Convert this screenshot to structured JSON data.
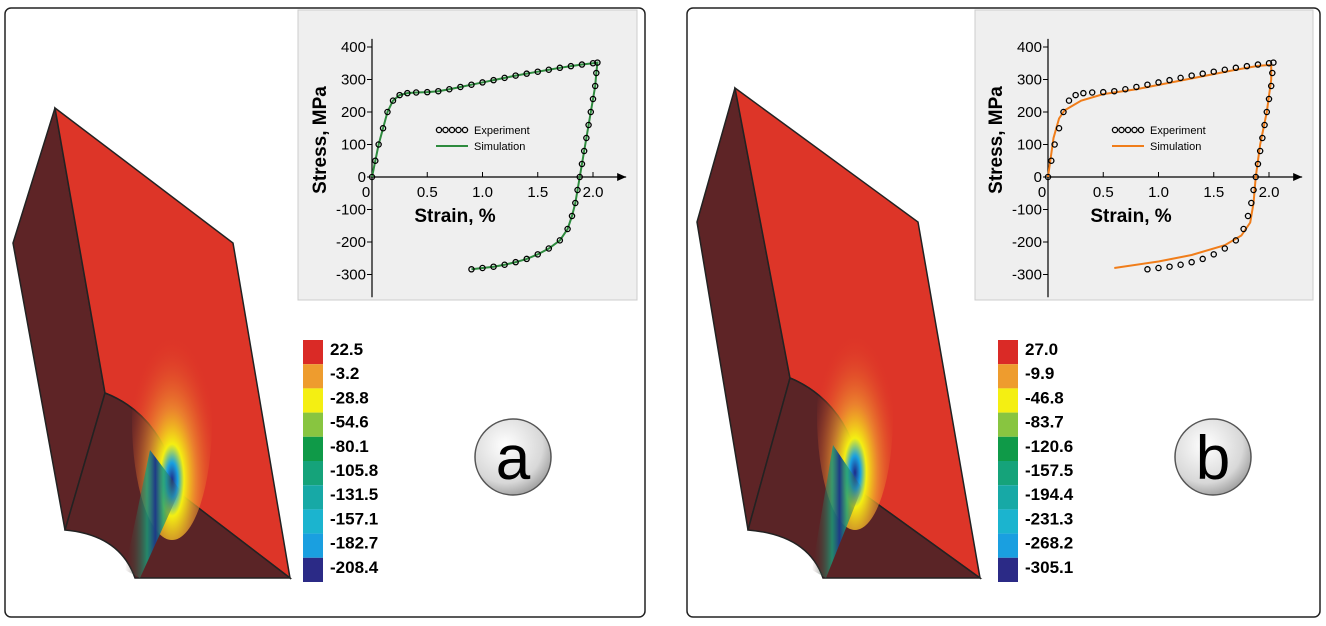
{
  "chart_data": [
    {
      "type": "line",
      "ylabel": "Stress, MPa",
      "xlabel": "Strain, %",
      "xlim": [
        0,
        2.3
      ],
      "ylim": [
        -370,
        425
      ],
      "xticks": [
        0,
        0.5,
        {
          "value": 1,
          "label": "1.0"
        },
        1.5,
        {
          "value": 2,
          "label": "2.0"
        }
      ],
      "yticks": [
        -300,
        -200,
        -100,
        0,
        100,
        200,
        300,
        400
      ],
      "series": [
        {
          "name": "Experiment",
          "color": "#000000",
          "style": "markers",
          "x": [
            0,
            0.03,
            0.06,
            0.1,
            0.14,
            0.19,
            0.25,
            0.32,
            0.4,
            0.5,
            0.6,
            0.7,
            0.8,
            0.9,
            1.0,
            1.1,
            1.2,
            1.3,
            1.4,
            1.5,
            1.6,
            1.7,
            1.8,
            1.9,
            2.0,
            2.04,
            2.03,
            2.02,
            2.0,
            1.98,
            1.96,
            1.94,
            1.92,
            1.9,
            1.88,
            1.86,
            1.84,
            1.81,
            1.77,
            1.7,
            1.6,
            1.5,
            1.4,
            1.3,
            1.2,
            1.1,
            1.0,
            0.9
          ],
          "values": [
            0,
            50,
            100,
            150,
            200,
            235,
            252,
            258,
            260,
            261,
            264,
            270,
            277,
            284,
            291,
            298,
            305,
            312,
            318,
            324,
            330,
            336,
            341,
            346,
            350,
            352,
            320,
            280,
            240,
            200,
            160,
            120,
            80,
            40,
            0,
            -40,
            -80,
            -120,
            -160,
            -195,
            -220,
            -238,
            -252,
            -262,
            -270,
            -276,
            -280,
            -284
          ]
        },
        {
          "name": "Simulation",
          "color": "#2e8b3e",
          "style": "line",
          "x": [
            0,
            0.03,
            0.06,
            0.1,
            0.14,
            0.19,
            0.25,
            0.32,
            0.4,
            0.5,
            0.6,
            0.7,
            0.8,
            0.9,
            1.0,
            1.1,
            1.2,
            1.3,
            1.4,
            1.5,
            1.6,
            1.7,
            1.8,
            1.9,
            2.0,
            2.04,
            2.03,
            2.02,
            2.0,
            1.98,
            1.96,
            1.94,
            1.92,
            1.9,
            1.88,
            1.86,
            1.84,
            1.81,
            1.77,
            1.7,
            1.6,
            1.5,
            1.4,
            1.3,
            1.2,
            1.1,
            1.0,
            0.9
          ],
          "values": [
            0,
            50,
            100,
            150,
            200,
            235,
            252,
            258,
            260,
            261,
            264,
            270,
            277,
            284,
            291,
            298,
            305,
            312,
            318,
            324,
            330,
            336,
            341,
            346,
            350,
            352,
            320,
            280,
            240,
            200,
            160,
            120,
            80,
            40,
            0,
            -40,
            -80,
            -120,
            -160,
            -195,
            -220,
            -238,
            -252,
            -262,
            -270,
            -276,
            -280,
            -284
          ]
        }
      ]
    },
    {
      "type": "line",
      "ylabel": "Stress, MPa",
      "xlabel": "Strain, %",
      "xlim": [
        0,
        2.3
      ],
      "ylim": [
        -370,
        425
      ],
      "xticks": [
        0,
        0.5,
        {
          "value": 1,
          "label": "1.0"
        },
        1.5,
        {
          "value": 2,
          "label": "2.0"
        }
      ],
      "yticks": [
        -300,
        -200,
        -100,
        0,
        100,
        200,
        300,
        400
      ],
      "series": [
        {
          "name": "Experiment",
          "color": "#000000",
          "style": "markers",
          "x": [
            0,
            0.03,
            0.06,
            0.1,
            0.14,
            0.19,
            0.25,
            0.32,
            0.4,
            0.5,
            0.6,
            0.7,
            0.8,
            0.9,
            1.0,
            1.1,
            1.2,
            1.3,
            1.4,
            1.5,
            1.6,
            1.7,
            1.8,
            1.9,
            2.0,
            2.04,
            2.03,
            2.02,
            2.0,
            1.98,
            1.96,
            1.94,
            1.92,
            1.9,
            1.88,
            1.86,
            1.84,
            1.81,
            1.77,
            1.7,
            1.6,
            1.5,
            1.4,
            1.3,
            1.2,
            1.1,
            1.0,
            0.9
          ],
          "values": [
            0,
            50,
            100,
            150,
            200,
            235,
            252,
            258,
            260,
            261,
            264,
            270,
            277,
            284,
            291,
            298,
            305,
            312,
            318,
            324,
            330,
            336,
            341,
            346,
            350,
            352,
            320,
            280,
            240,
            200,
            160,
            120,
            80,
            40,
            0,
            -40,
            -80,
            -120,
            -160,
            -195,
            -220,
            -238,
            -252,
            -262,
            -270,
            -276,
            -280,
            -284
          ]
        },
        {
          "name": "Simulation",
          "color": "#f07d1a",
          "style": "line",
          "x": [
            0,
            0.05,
            0.1,
            0.15,
            0.2,
            0.3,
            0.5,
            0.8,
            1.1,
            1.4,
            1.7,
            1.9,
            2.02,
            2.02,
            1.98,
            1.92,
            1.88,
            1.86,
            1.83,
            1.75,
            1.6,
            1.3,
            1.0,
            0.6
          ],
          "values": [
            0,
            120,
            180,
            205,
            215,
            235,
            255,
            270,
            290,
            310,
            330,
            342,
            345,
            300,
            200,
            100,
            0,
            -80,
            -140,
            -180,
            -210,
            -240,
            -260,
            -280
          ]
        }
      ]
    }
  ],
  "panels": [
    {
      "label": "a",
      "colorbar_labels": [
        "22.5",
        "-3.2",
        "-28.8",
        "-54.6",
        "-80.1",
        "-105.8",
        "-131.5",
        "-157.1",
        "-182.7",
        "-208.4"
      ],
      "colorbar_colors": [
        "#da2a26",
        "#ee9c2e",
        "#f4ef12",
        "#88c540",
        "#0f9a48",
        "#15a37a",
        "#17a9a6",
        "#1bb4cf",
        "#1a9fe0",
        "#2b2a86"
      ]
    },
    {
      "label": "b",
      "colorbar_labels": [
        "27.0",
        "-9.9",
        "-46.8",
        "-83.7",
        "-120.6",
        "-157.5",
        "-194.4",
        "-231.3",
        "-268.2",
        "-305.1"
      ],
      "colorbar_colors": [
        "#da2a26",
        "#ee9c2e",
        "#f4ef12",
        "#88c540",
        "#0f9a48",
        "#15a37a",
        "#17a9a6",
        "#1bb4cf",
        "#1a9fe0",
        "#2b2a86"
      ]
    }
  ]
}
